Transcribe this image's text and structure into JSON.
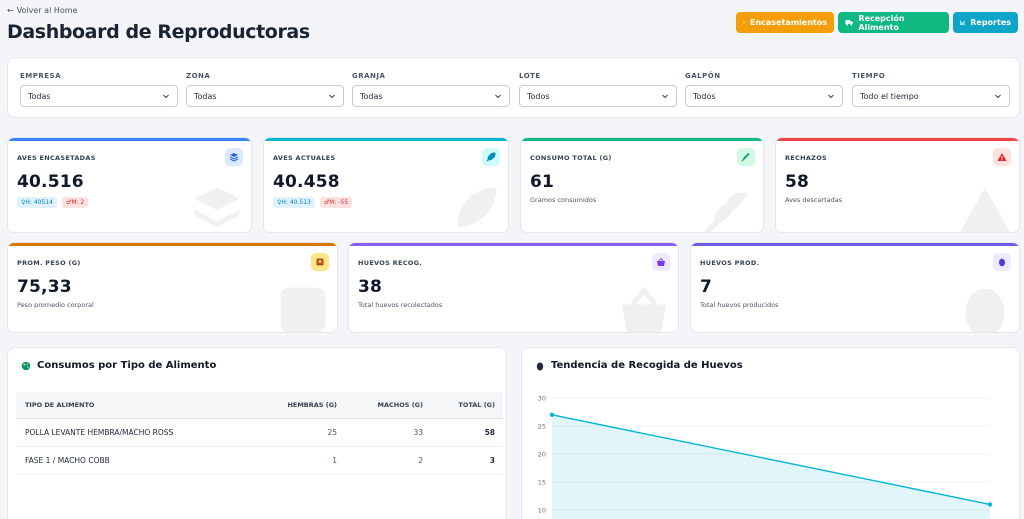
{
  "header": {
    "back_label": "Volver al Home",
    "title": "Dashboard de Reproductoras",
    "buttons": [
      {
        "label": "Encasetamientos",
        "icon": "home-icon",
        "color": "#f59e0b"
      },
      {
        "label": "Recepción Alimento",
        "icon": "truck-icon",
        "color": "#10b981"
      },
      {
        "label": "Reportes",
        "icon": "chart-icon",
        "color": "#0ea5c9"
      }
    ]
  },
  "filters": [
    {
      "label": "EMPRESA",
      "value": "Todas"
    },
    {
      "label": "ZONA",
      "value": "Todas"
    },
    {
      "label": "GRANJA",
      "value": "Todas"
    },
    {
      "label": "LOTE",
      "value": "Todos"
    },
    {
      "label": "GALPÓN",
      "value": "Todos"
    },
    {
      "label": "TIEMPO",
      "value": "Todo el tiempo"
    }
  ],
  "kpis": {
    "aves_encasetadas": {
      "label": "AVES ENCASETADAS",
      "value": "40.516",
      "badge_h": "H: 40514",
      "badge_m": "M: 2",
      "color": "#3b82f6",
      "icon": "layers-icon"
    },
    "aves_actuales": {
      "label": "AVES ACTUALES",
      "value": "40.458",
      "badge_h": "H: 40.513",
      "badge_m": "M: -55",
      "color": "#06b6d4",
      "icon": "feather-icon"
    },
    "consumo_total": {
      "label": "CONSUMO TOTAL (G)",
      "value": "61",
      "sub": "Gramos consumidos",
      "color": "#10b981",
      "icon": "wheat-icon"
    },
    "rechazos": {
      "label": "RECHAZOS",
      "value": "58",
      "sub": "Aves descartadas",
      "color": "#ef4444",
      "icon": "warning-icon"
    },
    "prom_peso": {
      "label": "PROM. PESO (G)",
      "value": "75,33",
      "sub": "Peso promedio corporal",
      "color": "#f59e0b",
      "icon": "scale-icon"
    },
    "huevos_recog": {
      "label": "HUEVOS RECOG.",
      "value": "38",
      "sub": "Total huevos recolectados",
      "color": "#8b5cf6",
      "icon": "basket-icon"
    },
    "huevos_prod": {
      "label": "HUEVOS PROD.",
      "value": "7",
      "sub": "Total huevos producidos",
      "color": "#6d5ce8",
      "icon": "egg-icon"
    }
  },
  "consumos": {
    "title": "Consumos por Tipo de Alimento",
    "columns": [
      "TIPO DE ALIMENTO",
      "HEMBRAS (G)",
      "MACHOS (G)",
      "TOTAL (G)"
    ],
    "rows": [
      {
        "tipo": "POLLA LEVANTE HEMBRA/MACHO ROSS",
        "hembras": "25",
        "machos": "33",
        "total": "58"
      },
      {
        "tipo": "FASE 1 / MACHO COBB",
        "hembras": "1",
        "machos": "2",
        "total": "3"
      }
    ]
  },
  "tendencia": {
    "title": "Tendencia de Recogida de Huevos"
  },
  "chart_data": {
    "type": "area",
    "title": "Tendencia de Recogida de Huevos",
    "y_ticks": [
      30,
      25,
      20,
      15,
      10
    ],
    "series": [
      {
        "values": [
          27,
          11
        ]
      }
    ],
    "color": "#06b6d4"
  }
}
